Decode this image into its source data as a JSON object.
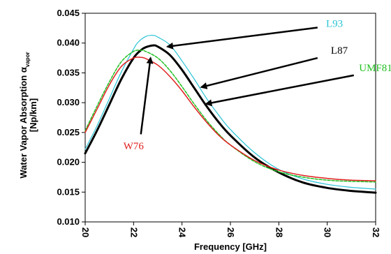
{
  "chart_data": {
    "type": "line",
    "xlabel": "Frequency [GHz]",
    "ylabel": {
      "main": "Water Vapor Absorption α",
      "subscript": "vapor",
      "unit": "[Np/km]"
    },
    "xlim": [
      20,
      32
    ],
    "ylim": [
      0.01,
      0.045
    ],
    "x_ticks": [
      "20",
      "22",
      "24",
      "26",
      "28",
      "30",
      "32"
    ],
    "y_ticks": [
      "0.010",
      "0.015",
      "0.020",
      "0.025",
      "0.030",
      "0.035",
      "0.040",
      "0.045"
    ],
    "grid": false,
    "series": [
      {
        "name": "L93",
        "color": "#29c3d6",
        "dashed": false,
        "width": 1.2,
        "x": [
          20,
          20.5,
          21,
          21.5,
          22,
          22.2,
          22.5,
          22.8,
          23,
          23.5,
          24,
          24.5,
          25,
          25.5,
          26,
          27,
          28,
          29,
          30,
          31,
          32
        ],
        "y": [
          0.0222,
          0.0262,
          0.0307,
          0.0352,
          0.039,
          0.0402,
          0.0411,
          0.0413,
          0.041,
          0.0397,
          0.037,
          0.034,
          0.0308,
          0.028,
          0.0255,
          0.0216,
          0.0188,
          0.0172,
          0.0163,
          0.0158,
          0.0155
        ]
      },
      {
        "name": "L87",
        "color": "#000000",
        "dashed": false,
        "width": 3,
        "x": [
          20,
          20.5,
          21,
          21.5,
          22,
          22.3,
          22.5,
          22.8,
          23,
          23.5,
          24,
          24.5,
          25,
          25.5,
          26,
          27,
          28,
          29,
          30,
          31,
          32
        ],
        "y": [
          0.0215,
          0.0254,
          0.0297,
          0.034,
          0.0375,
          0.0388,
          0.0393,
          0.0396,
          0.0394,
          0.038,
          0.0355,
          0.0325,
          0.0295,
          0.0268,
          0.0245,
          0.0208,
          0.0183,
          0.0166,
          0.0157,
          0.0152,
          0.0149
        ]
      },
      {
        "name": "UMF81",
        "color": "#1fbf1f",
        "dashed": true,
        "width": 1.5,
        "x": [
          20,
          20.5,
          21,
          21.5,
          22,
          22.3,
          22.5,
          23,
          23.5,
          24,
          24.5,
          25,
          25.5,
          26,
          27,
          28,
          29,
          30,
          31,
          32
        ],
        "y": [
          0.0253,
          0.0295,
          0.0335,
          0.0369,
          0.0386,
          0.0388,
          0.0386,
          0.0375,
          0.0354,
          0.0327,
          0.0298,
          0.0271,
          0.0248,
          0.0229,
          0.0201,
          0.0184,
          0.0175,
          0.017,
          0.0168,
          0.0167
        ]
      },
      {
        "name": "W76",
        "color": "#e02020",
        "dashed": false,
        "width": 1.5,
        "x": [
          20,
          20.5,
          21,
          21.5,
          22,
          22.3,
          22.5,
          23,
          23.5,
          24,
          24.5,
          25,
          25.5,
          26,
          27,
          28,
          29,
          30,
          31,
          32
        ],
        "y": [
          0.025,
          0.029,
          0.033,
          0.0361,
          0.0375,
          0.0376,
          0.0374,
          0.0363,
          0.0344,
          0.032,
          0.0293,
          0.0268,
          0.0246,
          0.0229,
          0.0203,
          0.0187,
          0.0178,
          0.0173,
          0.017,
          0.0169
        ]
      }
    ],
    "annotations": [
      {
        "text": "L93",
        "color": "#29c3d6",
        "label_x": 30.3,
        "label_y": 0.0427,
        "arrow_from": [
          29.6,
          0.0426
        ],
        "arrow_to": [
          23.4,
          0.0394
        ]
      },
      {
        "text": "L87",
        "color": "#000000",
        "label_x": 30.5,
        "label_y": 0.0382,
        "arrow_from": [
          29.6,
          0.0375
        ],
        "arrow_to": [
          24.8,
          0.0326
        ]
      },
      {
        "text": "UMF81",
        "color": "#1fbf1f",
        "label_x": 32.0,
        "label_y": 0.0353,
        "arrow_from": [
          31.1,
          0.0346
        ],
        "arrow_to": [
          25.0,
          0.0298
        ]
      },
      {
        "text": "W76",
        "color": "#e02020",
        "label_x": 22.0,
        "label_y": 0.0222,
        "arrow_from": [
          22.3,
          0.0247
        ],
        "arrow_to": [
          22.7,
          0.0375
        ]
      }
    ]
  }
}
